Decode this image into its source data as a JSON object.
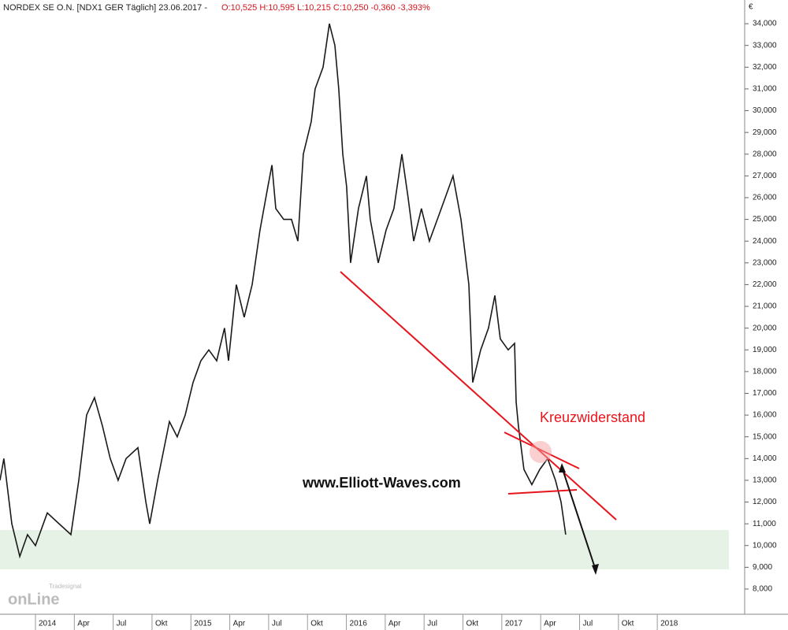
{
  "chart_data": {
    "type": "line",
    "title": "NORDEX SE O.N. [NDX1 GER  Täglich] 23.06.2017 -",
    "quote": "O:10,525 H:10,595 L:10,215 C:10,250 -0,360 -3,393%",
    "y_unit": "€",
    "annotations": [
      "Kreuzwiderstand",
      "www.Elliott-Waves.com"
    ],
    "logo": [
      "Tradesignal",
      "onLine"
    ],
    "series": [
      {
        "name": "NORDEX SE O.N.",
        "color": "#1a1a1a",
        "x": [
          2013.772,
          2013.797,
          2013.848,
          2013.899,
          2013.949,
          2014.0,
          2014.076,
          2014.152,
          2014.228,
          2014.279,
          2014.329,
          2014.38,
          2014.431,
          2014.481,
          2014.532,
          2014.583,
          2014.659,
          2014.71,
          2014.735,
          2014.786,
          2014.862,
          2014.912,
          2014.963,
          2015.014,
          2015.064,
          2015.115,
          2015.166,
          2015.216,
          2015.242,
          2015.292,
          2015.343,
          2015.394,
          2015.444,
          2015.495,
          2015.521,
          2015.546,
          2015.597,
          2015.647,
          2015.688,
          2015.723,
          2015.774,
          2015.799,
          2015.85,
          2015.891,
          2015.926,
          2015.951,
          2015.977,
          2016.002,
          2016.027,
          2016.078,
          2016.129,
          2016.154,
          2016.205,
          2016.255,
          2016.306,
          2016.357,
          2016.397,
          2016.433,
          2016.483,
          2016.534,
          2016.585,
          2016.636,
          2016.686,
          2016.737,
          2016.788,
          2016.813,
          2016.864,
          2016.914,
          2016.955,
          2016.99,
          2017.041,
          2017.082,
          2017.092,
          2017.107,
          2017.142,
          2017.193,
          2017.244,
          2017.295,
          2017.345,
          2017.381,
          2017.411
        ],
        "values": [
          13000,
          14000,
          11000,
          9500,
          10500,
          10000,
          11500,
          11000,
          10500,
          13000,
          16000,
          16800,
          15500,
          14000,
          13000,
          14000,
          14500,
          12000,
          11000,
          13000,
          15700,
          15000,
          16000,
          17500,
          18500,
          19000,
          18500,
          20000,
          18500,
          22000,
          20500,
          22000,
          24500,
          26500,
          27500,
          25500,
          25000,
          25000,
          24000,
          28000,
          29500,
          31000,
          32000,
          34000,
          33000,
          31000,
          28000,
          26500,
          23000,
          25500,
          27000,
          25000,
          23000,
          24500,
          25500,
          28000,
          26000,
          24000,
          25500,
          24000,
          25000,
          26000,
          27000,
          25000,
          22000,
          17500,
          19000,
          20000,
          21500,
          19500,
          19000,
          19300,
          16600,
          15500,
          13500,
          12800,
          13500,
          14000,
          13000,
          12000,
          10500
        ]
      }
    ],
    "xlim": [
      2013.772,
      2018.562
    ],
    "xticks": [
      2014,
      {
        "value": 2014.25,
        "label": "Apr"
      },
      {
        "value": 2014.5,
        "label": "Jul"
      },
      {
        "value": 2014.75,
        "label": "Okt"
      },
      2015,
      {
        "value": 2015.25,
        "label": "Apr"
      },
      {
        "value": 2015.5,
        "label": "Jul"
      },
      {
        "value": 2015.75,
        "label": "Okt"
      },
      2016,
      {
        "value": 2016.25,
        "label": "Apr"
      },
      {
        "value": 2016.5,
        "label": "Jul"
      },
      {
        "value": 2016.75,
        "label": "Okt"
      },
      2017,
      {
        "value": 2017.25,
        "label": "Apr"
      },
      {
        "value": 2017.5,
        "label": "Jul"
      },
      {
        "value": 2017.75,
        "label": "Okt"
      },
      2018
    ],
    "ylim": [
      6840,
      35090
    ],
    "yticks": [
      {
        "value": 8000,
        "label": "8,000"
      },
      {
        "value": 9000,
        "label": "9,000"
      },
      {
        "value": 10000,
        "label": "10,000"
      },
      {
        "value": 11000,
        "label": "11,000"
      },
      {
        "value": 12000,
        "label": "12,000"
      },
      {
        "value": 13000,
        "label": "13,000"
      },
      {
        "value": 14000,
        "label": "14,000"
      },
      {
        "value": 15000,
        "label": "15,000"
      },
      {
        "value": 16000,
        "label": "16,000"
      },
      {
        "value": 17000,
        "label": "17,000"
      },
      {
        "value": 18000,
        "label": "18,000"
      },
      {
        "value": 19000,
        "label": "19,000"
      },
      {
        "value": 20000,
        "label": "20,000"
      },
      {
        "value": 21000,
        "label": "21,000"
      },
      {
        "value": 22000,
        "label": "22,000"
      },
      {
        "value": 23000,
        "label": "23,000"
      },
      {
        "value": 24000,
        "label": "24,000"
      },
      {
        "value": 25000,
        "label": "25,000"
      },
      {
        "value": 26000,
        "label": "26,000"
      },
      {
        "value": 27000,
        "label": "27,000"
      },
      {
        "value": 28000,
        "label": "28,000"
      },
      {
        "value": 29000,
        "label": "29,000"
      },
      {
        "value": 30000,
        "label": "30,000"
      },
      {
        "value": 31000,
        "label": "31,000"
      },
      {
        "value": 32000,
        "label": "32,000"
      },
      {
        "value": 33000,
        "label": "33,000"
      },
      {
        "value": 34000,
        "label": "34,000"
      }
    ]
  }
}
